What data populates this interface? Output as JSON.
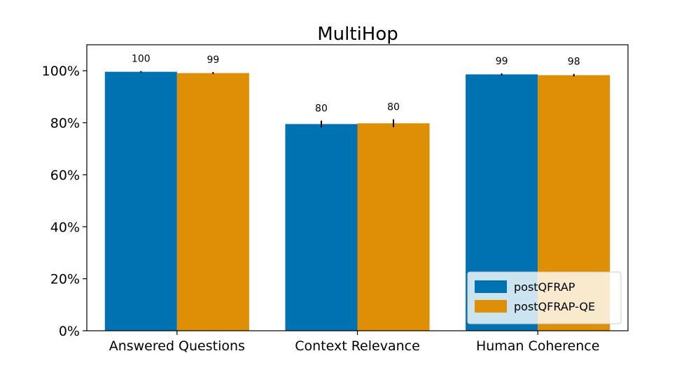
{
  "chart_data": {
    "type": "bar",
    "title": "MultiHop",
    "xlabel": "",
    "ylabel": "",
    "categories": [
      "Answered Questions",
      "Context Relevance",
      "Human Coherence"
    ],
    "series": [
      {
        "name": "postQFRAP",
        "color": "#0072b2",
        "values": [
          99.6,
          79.5,
          98.6
        ],
        "errors": [
          0.3,
          1.3,
          0.4
        ],
        "labels": [
          "100",
          "80",
          "99"
        ]
      },
      {
        "name": "postQFRAP-QE",
        "color": "#de8f05",
        "values": [
          99.1,
          79.8,
          98.3
        ],
        "errors": [
          0.4,
          1.5,
          0.5
        ],
        "labels": [
          "99",
          "80",
          "98"
        ]
      }
    ],
    "ylim": [
      0,
      110
    ],
    "yticks": [
      0,
      20,
      40,
      60,
      80,
      100
    ],
    "ytick_labels": [
      "0%",
      "20%",
      "40%",
      "60%",
      "80%",
      "100%"
    ],
    "grid": false,
    "legend_position": "lower-right"
  }
}
